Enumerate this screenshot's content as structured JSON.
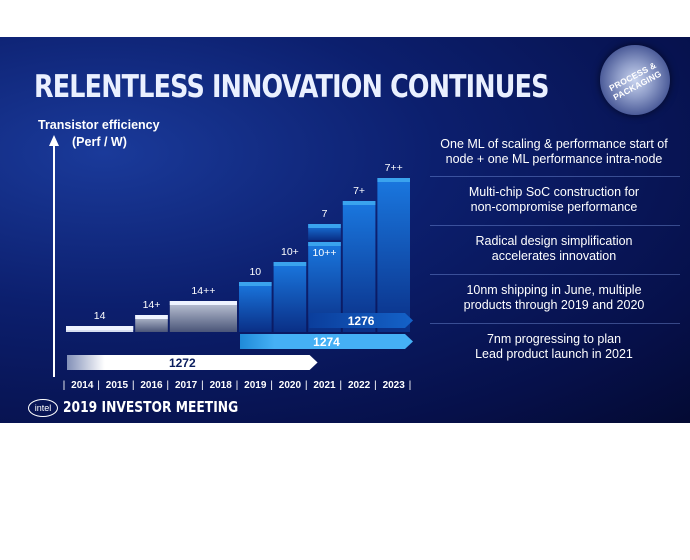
{
  "slide": {
    "title": "RELENTLESS INNOVATION CONTINUES",
    "badge": "PROCESS & PACKAGING",
    "footer_logo": "intel",
    "footer_text": "2019 INVESTOR MEETING"
  },
  "chart_data": {
    "type": "bar",
    "ylabel_line1": "Transistor efficiency",
    "ylabel_line2": "(Perf / W)",
    "categories": [
      "2014",
      "2015",
      "2016",
      "2017",
      "2018",
      "2019",
      "2020",
      "2021",
      "2022",
      "2023"
    ],
    "bars": [
      {
        "label": "14",
        "year": "2014",
        "span_years": 2,
        "level": 1
      },
      {
        "label": "14+",
        "year": "2016",
        "span_years": 1,
        "level": 2
      },
      {
        "label": "14++",
        "year": "2017",
        "span_years": 2,
        "level": 3
      },
      {
        "label": "10",
        "year": "2019",
        "span_years": 1,
        "level": 4
      },
      {
        "label": "10+",
        "year": "2020",
        "span_years": 1,
        "level": 5
      },
      {
        "label": "10++",
        "year": "2021",
        "span_years": 1,
        "level": 6
      },
      {
        "label": "7",
        "year": "2021",
        "span_years": 1,
        "level": 7
      },
      {
        "label": "7+",
        "year": "2022",
        "span_years": 1,
        "level": 8
      },
      {
        "label": "7++",
        "year": "2023",
        "span_years": 1,
        "level": 9
      }
    ],
    "processes": [
      {
        "label": "1272",
        "start": "2014",
        "end": "2021"
      },
      {
        "label": "1274",
        "start": "2019",
        "end": "2023"
      },
      {
        "label": "1276",
        "start": "2021",
        "end": "2023"
      }
    ],
    "colors": {
      "dark_blue": "#0f5fc2",
      "light_blue": "#3aa3ee",
      "gray": "#a8b2c8",
      "white": "#eef3ff"
    }
  },
  "right_panel": [
    [
      "One ML of scaling & performance start of",
      "node + one ML performance intra-node"
    ],
    [
      "Multi-chip SoC construction for",
      "non-compromise performance"
    ],
    [
      "Radical design simplification",
      "accelerates innovation"
    ],
    [
      "10nm shipping in June, multiple",
      "products through 2019 and 2020"
    ],
    [
      "7nm progressing to plan",
      "Lead product launch in 2021"
    ]
  ]
}
